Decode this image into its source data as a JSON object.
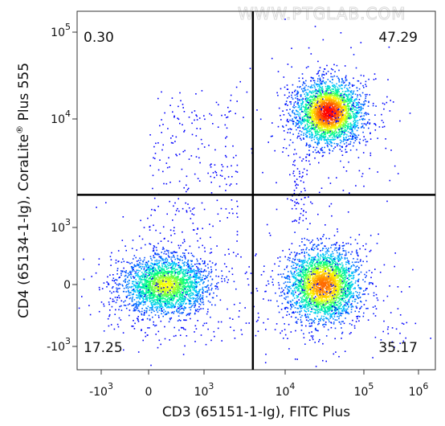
{
  "watermark": "WWW.PTGLAB.COM",
  "chart_data": {
    "type": "scatter",
    "subtype": "flow-cytometry-density-dot-plot",
    "xlabel": "CD3 (65151-1-Ig), FITC Plus",
    "ylabel": {
      "prefix": "CD4 (65134-1-Ig), CoraLite",
      "superscript": "®",
      "suffix": " Plus 555"
    },
    "x_scale": "biexponential",
    "y_scale": "biexponential",
    "x_ticks": [
      {
        "value": -1000,
        "base": "-10",
        "exp": "3"
      },
      {
        "value": 0,
        "base": "0",
        "exp": ""
      },
      {
        "value": 1000,
        "base": "10",
        "exp": "3"
      },
      {
        "value": 10000,
        "base": "10",
        "exp": "4"
      },
      {
        "value": 100000,
        "base": "10",
        "exp": "5"
      },
      {
        "value": 1000000,
        "base": "10",
        "exp": "6"
      }
    ],
    "y_ticks": [
      {
        "value": 100000,
        "base": "10",
        "exp": "5"
      },
      {
        "value": 10000,
        "base": "10",
        "exp": "4"
      },
      {
        "value": 1000,
        "base": "10",
        "exp": "3"
      },
      {
        "value": 0,
        "base": "0",
        "exp": ""
      },
      {
        "value": -1000,
        "base": "-10",
        "exp": "3"
      }
    ],
    "quadrant_gate": {
      "x": 4000,
      "y": 2000
    },
    "quadrants": [
      {
        "position": "upper-left",
        "percent": "0.30"
      },
      {
        "position": "upper-right",
        "percent": "47.29"
      },
      {
        "position": "lower-left",
        "percent": "17.25"
      },
      {
        "position": "lower-right",
        "percent": "35.17"
      }
    ],
    "populations": [
      {
        "quadrant": "lower-left",
        "center_x": 300,
        "center_y": 0
      },
      {
        "quadrant": "lower-right",
        "center_x": 30000,
        "center_y": 0
      },
      {
        "quadrant": "upper-right",
        "center_x": 35000,
        "center_y": 12000
      }
    ],
    "colormap": [
      "#0000ff",
      "#00c8ff",
      "#00ff80",
      "#ffff00",
      "#ff8000",
      "#ff0000"
    ]
  }
}
